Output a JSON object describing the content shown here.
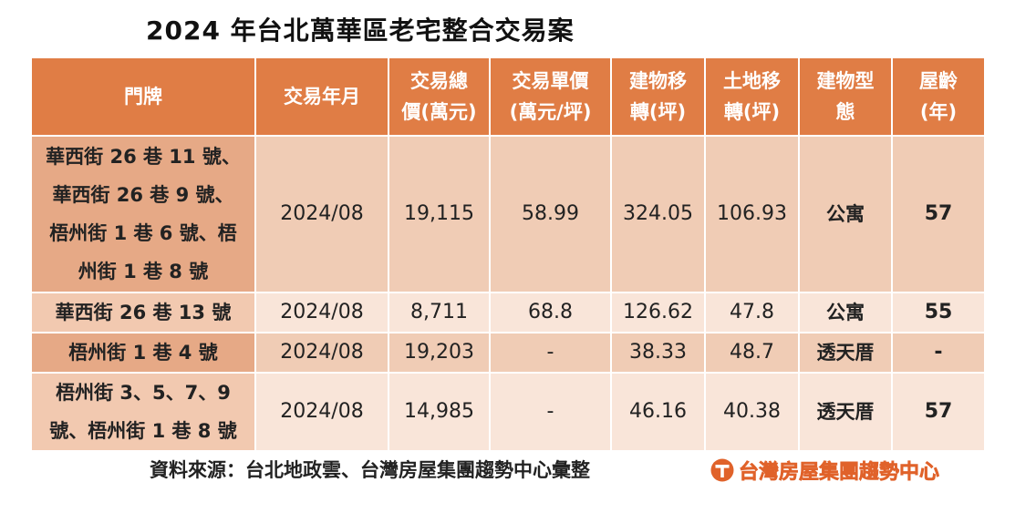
{
  "title": "2024 年台北萬華區老宅整合交易案",
  "table": {
    "headers": [
      {
        "lines": [
          "門牌"
        ]
      },
      {
        "lines": [
          "交易年月"
        ]
      },
      {
        "lines": [
          "交易總",
          "價(萬元)"
        ]
      },
      {
        "lines": [
          "交易單價",
          "(萬元/坪)"
        ]
      },
      {
        "lines": [
          "建物移",
          "轉(坪)"
        ]
      },
      {
        "lines": [
          "土地移",
          "轉(坪)"
        ]
      },
      {
        "lines": [
          "建物型",
          "態"
        ]
      },
      {
        "lines": [
          "屋齡",
          "(年)"
        ]
      }
    ],
    "rows": [
      {
        "address_lines": [
          "華西街 26 巷 11 號、",
          "華西街 26 巷 9 號、",
          "梧州街 1 巷 6 號、梧",
          "州街 1 巷 8 號"
        ],
        "date": "2024/08",
        "total_price": "19,115",
        "unit_price": "58.99",
        "building_area": "324.05",
        "land_area": "106.93",
        "building_type": "公寓",
        "age": "57"
      },
      {
        "address_lines": [
          "華西街 26 巷 13 號"
        ],
        "date": "2024/08",
        "total_price": "8,711",
        "unit_price": "68.8",
        "building_area": "126.62",
        "land_area": "47.8",
        "building_type": "公寓",
        "age": "55"
      },
      {
        "address_lines": [
          "梧州街 1 巷 4 號"
        ],
        "date": "2024/08",
        "total_price": "19,203",
        "unit_price": "-",
        "building_area": "38.33",
        "land_area": "48.7",
        "building_type": "透天厝",
        "age": "-"
      },
      {
        "address_lines": [
          "梧州街 3、5、7、9",
          "號、梧州街 1 巷 8 號"
        ],
        "date": "2024/08",
        "total_price": "14,985",
        "unit_price": "-",
        "building_area": "46.16",
        "land_area": "40.38",
        "building_type": "透天厝",
        "age": "57"
      }
    ]
  },
  "source": "資料來源：台北地政雲、台灣房屋集團趨勢中心彙整",
  "logo": {
    "icon": "taiwan-realty-logo-icon",
    "name": "台灣房屋集團趨勢中心",
    "color": "#e0622a"
  },
  "colors": {
    "header_bg": "#e07d45",
    "row_odd_bg": "#f0ccb5",
    "row_odd_addr_bg": "#e6a986",
    "row_even_bg": "#f9e5d9",
    "row_even_addr_bg": "#f2c9b0"
  }
}
